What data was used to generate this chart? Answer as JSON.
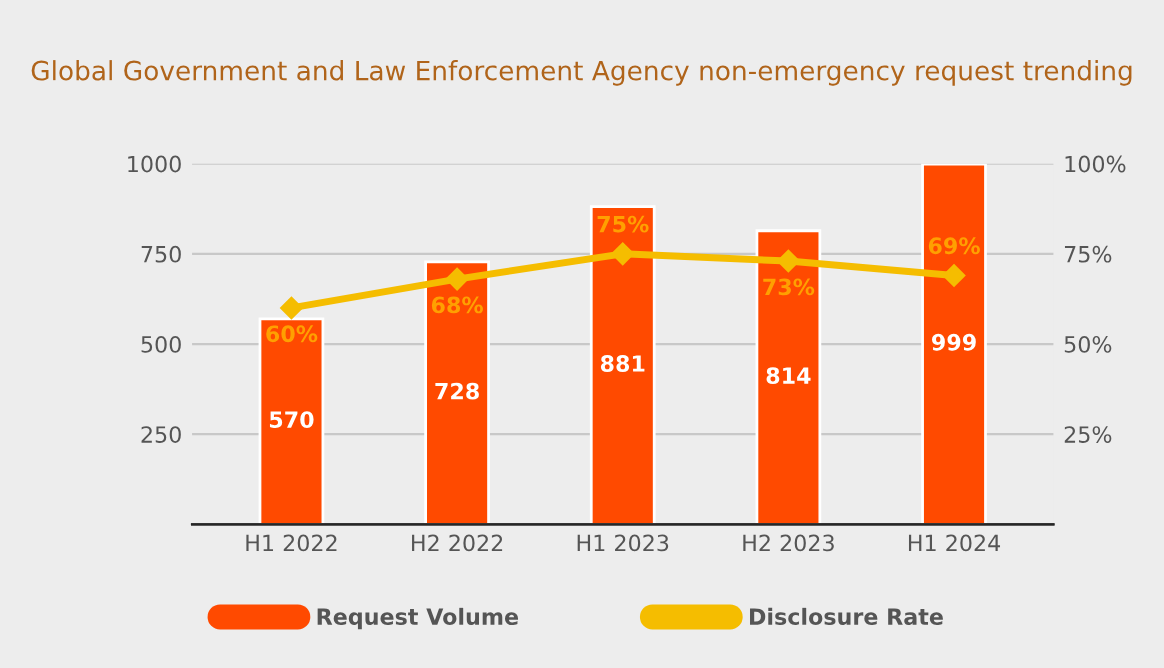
{
  "chart_data": {
    "type": "bar",
    "title": "Global Government and Law Enforcement Agency non-emergency request trending",
    "categories": [
      "H1 2022",
      "H2 2022",
      "H1 2023",
      "H2 2023",
      "H1 2024"
    ],
    "series": [
      {
        "name": "Request Volume",
        "color": "#ff4a00",
        "values": [
          570,
          728,
          881,
          814,
          999
        ],
        "value_labels": [
          "570",
          "728",
          "881",
          "814",
          "999"
        ]
      },
      {
        "name": "Disclosure Rate",
        "type": "line",
        "axis": "y2",
        "color": "#f5bd00",
        "values": [
          60,
          68,
          75,
          73,
          69
        ],
        "value_labels": [
          "60%",
          "68%",
          "75%",
          "73%",
          "69%"
        ]
      }
    ],
    "ylim": [
      0,
      1000
    ],
    "yticks": [
      250,
      500,
      750,
      1000
    ],
    "y2lim": [
      0,
      100
    ],
    "y2ticks": [
      {
        "value": 25,
        "label": "25%"
      },
      {
        "value": 50,
        "label": "50%"
      },
      {
        "value": 75,
        "label": "75%"
      },
      {
        "value": 100,
        "label": "100%"
      }
    ],
    "grid": "y",
    "legend": "bottom",
    "marker": "diamond",
    "line_style": "solid"
  }
}
